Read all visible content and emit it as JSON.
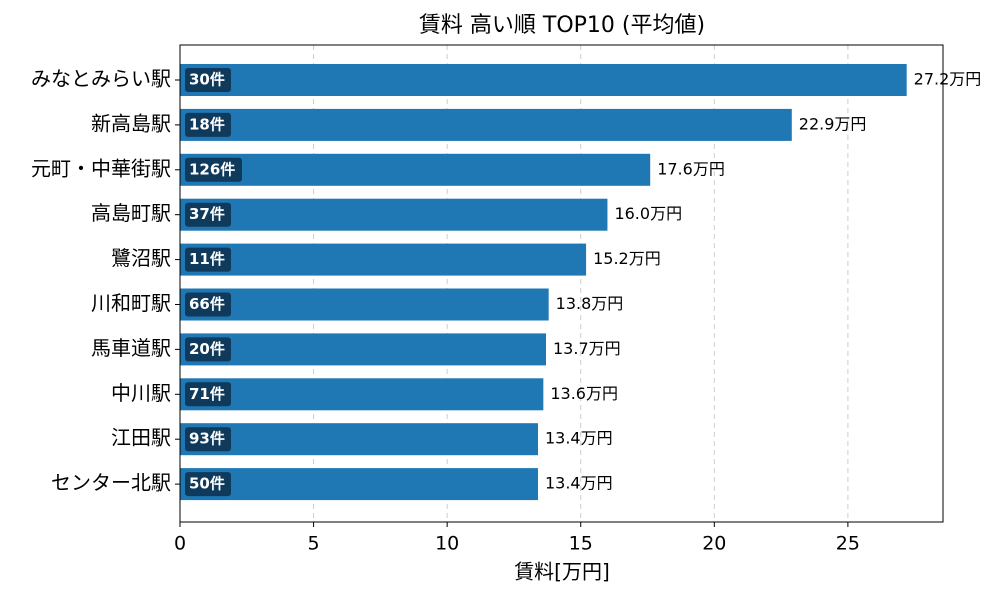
{
  "chart_data": {
    "type": "barh",
    "title": "賃料 高い順 TOP10 (平均値)",
    "x_label": "賃料[万円]",
    "categories": [
      "みなとみらい駅",
      "新高島駅",
      "元町・中華街駅",
      "高島町駅",
      "鷺沼駅",
      "川和町駅",
      "馬車道駅",
      "中川駅",
      "江田駅",
      "センター北駅"
    ],
    "values": [
      27.2,
      22.9,
      17.6,
      16.0,
      15.2,
      13.8,
      13.7,
      13.6,
      13.4,
      13.4
    ],
    "value_labels": [
      "27.2万円",
      "22.9万円",
      "17.6万円",
      "16.0万円",
      "15.2万円",
      "13.8万円",
      "13.7万円",
      "13.6万円",
      "13.4万円",
      "13.4万円"
    ],
    "count_labels": [
      "30件",
      "18件",
      "126件",
      "37件",
      "11件",
      "66件",
      "20件",
      "71件",
      "93件",
      "50件"
    ],
    "color": "#1f77b4",
    "xlim": [
      0,
      28.56
    ],
    "xticks": [
      0,
      5,
      10,
      15,
      20,
      25
    ],
    "grid": true
  }
}
